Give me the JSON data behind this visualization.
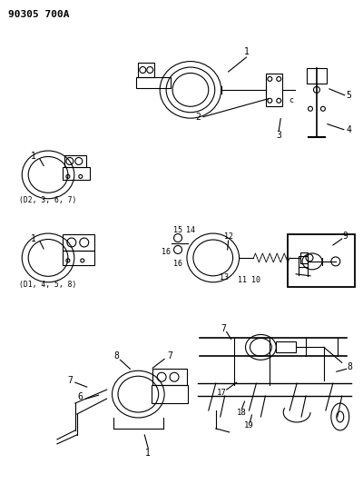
{
  "title": "90305 700A",
  "background_color": "#ffffff",
  "text_color": "#000000",
  "label_d2": "(D2, 3, 6, 7)",
  "label_d1": "(D1, 4, 5, 8)",
  "fig_width": 4.0,
  "fig_height": 5.33,
  "dpi": 100
}
